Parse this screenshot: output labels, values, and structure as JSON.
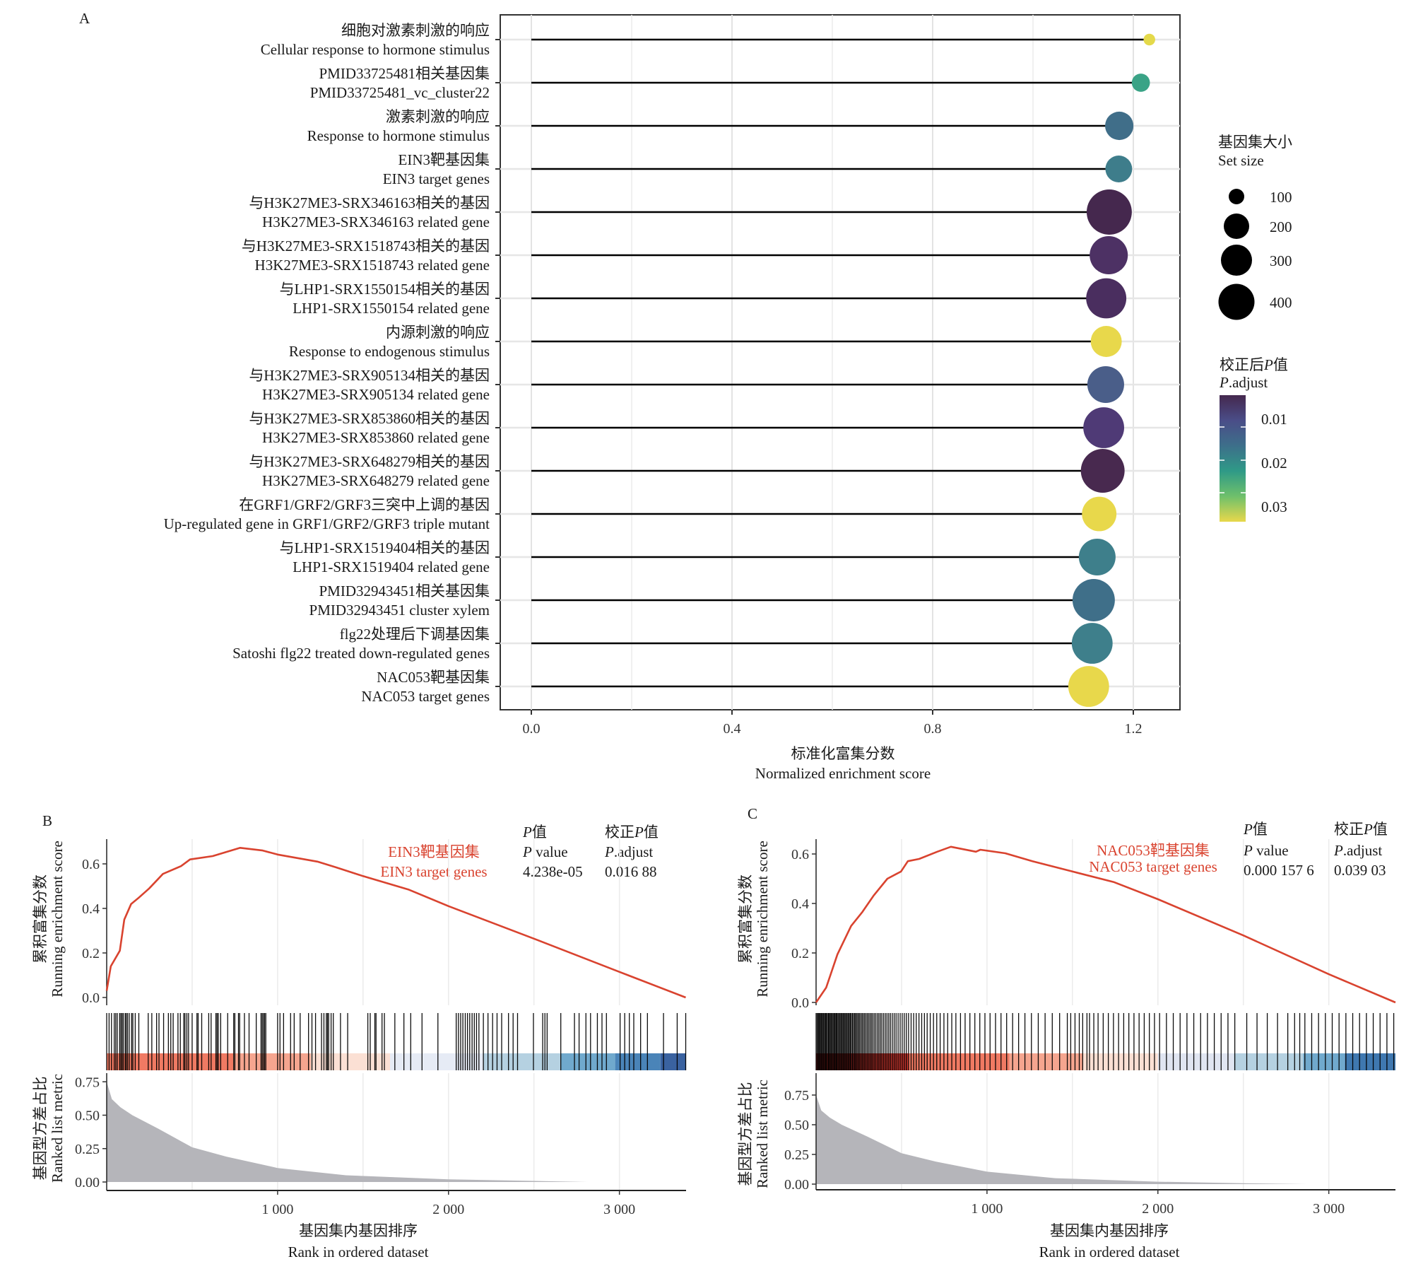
{
  "panel_a": {
    "letter": "A",
    "xlabel_cn": "标准化富集分数",
    "xlabel_en": "Normalized enrichment score",
    "x_ticks": [
      "0.0",
      "0.4",
      "0.8",
      "1.2"
    ],
    "size_legend": {
      "title_cn": "基因集大小",
      "title_en": "Set size",
      "items": [
        "100",
        "200",
        "300",
        "400"
      ]
    },
    "color_legend": {
      "title_cn_prefix": "校正后",
      "title_cn_p": "P",
      "title_cn_suffix": "值",
      "title_en_p": "P",
      "title_en_suffix": ".adjust",
      "ticks": [
        "0.01",
        "0.02",
        "0.03"
      ]
    }
  },
  "panel_b": {
    "letter": "B",
    "gene_set_cn": "EIN3靶基因集",
    "gene_set_en": "EIN3 target genes",
    "pvalue_head_cn_p": "P",
    "pvalue_head_cn": "值",
    "pvalue_head_en_p": "P",
    "pvalue_head_en": " value",
    "padj_head_cn_prefix": "校正",
    "padj_head_cn_p": "P",
    "padj_head_cn": "值",
    "padj_head_en_p": "P",
    "padj_head_en": ".adjust",
    "pvalue": "4.238e-05",
    "padj": "0.016 88",
    "ylabel_top_cn": "累积富集分数",
    "ylabel_top_en": "Running enrichment score",
    "ylabel_bottom_cn": "基因型方差占比",
    "ylabel_bottom_en": "Ranked list metric",
    "xlabel_cn": "基因集内基因排序",
    "xlabel_en": "Rank in ordered dataset",
    "es_ticks": [
      "0.0",
      "0.2",
      "0.4",
      "0.6"
    ],
    "metric_ticks": [
      "0.00",
      "0.25",
      "0.50",
      "0.75"
    ],
    "x_ticks": [
      "1 000",
      "2 000",
      "3 000"
    ]
  },
  "panel_c": {
    "letter": "C",
    "gene_set_cn": "NAC053靶基因集",
    "gene_set_en": "NAC053 target genes",
    "pvalue_head_cn_p": "P",
    "pvalue_head_cn": "值",
    "pvalue_head_en_p": "P",
    "pvalue_head_en": " value",
    "padj_head_cn_prefix": "校正",
    "padj_head_cn_p": "P",
    "padj_head_cn": "值",
    "padj_head_en_p": "P",
    "padj_head_en": ".adjust",
    "pvalue": "0.000 157 6",
    "padj": "0.039 03",
    "ylabel_top_cn": "累积富集分数",
    "ylabel_top_en": "Running enrichment score",
    "ylabel_bottom_cn": "基因型方差占比",
    "ylabel_bottom_en": "Ranked list metric",
    "xlabel_cn": "基因集内基因排序",
    "xlabel_en": "Rank in ordered dataset",
    "es_ticks": [
      "0.0",
      "0.2",
      "0.4",
      "0.6"
    ],
    "metric_ticks": [
      "0.00",
      "0.25",
      "0.50",
      "0.75"
    ],
    "x_ticks": [
      "1 000",
      "2 000",
      "3 000"
    ]
  },
  "chart_data": [
    {
      "type": "scatter",
      "subtype": "lollipop",
      "title": "",
      "xlabel": "标准化富集分数 / Normalized enrichment score",
      "ylabel": "",
      "xlim": [
        -0.06,
        1.29
      ],
      "x_ticks": [
        0.0,
        0.4,
        0.8,
        1.2
      ],
      "grid": true,
      "legend": "right",
      "size_legend": {
        "title": "基因集大小 / Set size",
        "breaks": [
          100,
          200,
          300,
          400
        ]
      },
      "color_legend": {
        "title": "校正后P值 / P.adjust",
        "breaks": [
          0.01,
          0.02,
          0.03
        ],
        "range": [
          0.005,
          0.039
        ],
        "palette": "viridis-reversed"
      },
      "categories": [
        {
          "cn": "细胞对激素刺激的响应",
          "en": "Cellular response to hormone stimulus",
          "nes": 1.232,
          "size": 70,
          "p_adjust": 0.038,
          "color": "#e4d94b"
        },
        {
          "cn": "PMID33725481相关基因集",
          "en": "PMID33725481_vc_cluster22",
          "nes": 1.215,
          "size": 125,
          "p_adjust": 0.026,
          "color": "#3aa386"
        },
        {
          "cn": "激素刺激的响应",
          "en": "Response to hormone stimulus",
          "nes": 1.172,
          "size": 260,
          "p_adjust": 0.017,
          "color": "#406e89"
        },
        {
          "cn": "EIN3靶基因集",
          "en": "EIN3 target genes",
          "nes": 1.171,
          "size": 235,
          "p_adjust": 0.01688,
          "color": "#3e7d8b"
        },
        {
          "cn": "与H3K27ME3-SRX346163相关的基因",
          "en": "H3K27ME3-SRX346163 related gene",
          "nes": 1.152,
          "size": 610,
          "p_adjust": 0.006,
          "color": "#45284e"
        },
        {
          "cn": "与H3K27ME3-SRX1518743相关的基因",
          "en": "H3K27ME3-SRX1518743 related gene",
          "nes": 1.151,
          "size": 445,
          "p_adjust": 0.008,
          "color": "#4d3164"
        },
        {
          "cn": "与LHP1-SRX1550154相关的基因",
          "en": "LHP1-SRX1550154 related gene",
          "nes": 1.146,
          "size": 490,
          "p_adjust": 0.008,
          "color": "#4a2e5f"
        },
        {
          "cn": "内源刺激的响应",
          "en": "Response to endogenous stimulus",
          "nes": 1.146,
          "size": 305,
          "p_adjust": 0.039,
          "color": "#e8d84b"
        },
        {
          "cn": "与H3K27ME3-SRX905134相关的基因",
          "en": "H3K27ME3-SRX905134 related gene",
          "nes": 1.145,
          "size": 415,
          "p_adjust": 0.013,
          "color": "#4a5e89"
        },
        {
          "cn": "与H3K27ME3-SRX853860相关的基因",
          "en": "H3K27ME3-SRX853860 related gene",
          "nes": 1.141,
          "size": 505,
          "p_adjust": 0.009,
          "color": "#4f3a76"
        },
        {
          "cn": "与H3K27ME3-SRX648279相关的基因",
          "en": "H3K27ME3-SRX648279 related gene",
          "nes": 1.139,
          "size": 575,
          "p_adjust": 0.006,
          "color": "#48294f"
        },
        {
          "cn": "在GRF1/GRF2/GRF3三突中上调的基因",
          "en": "Up-regulated gene in GRF1/GRF2/GRF3 triple mutant",
          "nes": 1.132,
          "size": 370,
          "p_adjust": 0.039,
          "color": "#e8d84b"
        },
        {
          "cn": "与LHP1-SRX1519404相关的基因",
          "en": "LHP1-SRX1519404 related gene",
          "nes": 1.128,
          "size": 415,
          "p_adjust": 0.02,
          "color": "#3e7f8b"
        },
        {
          "cn": "PMID32943451相关基因集",
          "en": "PMID32943451 cluster xylem",
          "nes": 1.121,
          "size": 540,
          "p_adjust": 0.017,
          "color": "#3f6f89"
        },
        {
          "cn": "flg22处理后下调基因集",
          "en": "Satoshi flg22 treated down-regulated genes",
          "nes": 1.118,
          "size": 505,
          "p_adjust": 0.02,
          "color": "#3e7f8b"
        },
        {
          "cn": "NAC053靶基因集",
          "en": "NAC053 target genes",
          "nes": 1.111,
          "size": 505,
          "p_adjust": 0.03903,
          "color": "#e8d84b"
        }
      ]
    },
    {
      "type": "line",
      "title": "EIN3靶基因集 / EIN3 target genes",
      "xlabel": "基因集内基因排序 / Rank in ordered dataset",
      "ylabel": "累积富集分数 / Running enrichment score",
      "xlim": [
        0,
        3390
      ],
      "ylim": [
        -0.02,
        0.7
      ],
      "grid": true,
      "line_color": "#d9432f",
      "running_es": [
        [
          0,
          0.03
        ],
        [
          24,
          0.14
        ],
        [
          77,
          0.21
        ],
        [
          103,
          0.35
        ],
        [
          143,
          0.42
        ],
        [
          183,
          0.445
        ],
        [
          249,
          0.49
        ],
        [
          329,
          0.555
        ],
        [
          435,
          0.59
        ],
        [
          488,
          0.62
        ],
        [
          620,
          0.635
        ],
        [
          781,
          0.672
        ],
        [
          913,
          0.66
        ],
        [
          1000,
          0.642
        ],
        [
          1233,
          0.61
        ],
        [
          1340,
          0.585
        ],
        [
          1500,
          0.545
        ],
        [
          1765,
          0.485
        ],
        [
          2000,
          0.41
        ],
        [
          2500,
          0.264
        ],
        [
          3000,
          0.115
        ],
        [
          3388,
          0.0
        ]
      ],
      "hits": [
        0,
        14,
        28,
        44,
        53,
        62,
        76,
        83,
        90,
        97,
        108,
        114,
        122,
        132,
        146,
        153,
        167,
        188,
        243,
        264,
        292,
        306,
        333,
        361,
        375,
        389,
        417,
        431,
        451,
        458,
        469,
        479,
        500,
        528,
        535,
        556,
        597,
        611,
        639,
        646,
        653,
        667,
        708,
        743,
        750,
        771,
        778,
        806,
        833,
        875,
        903,
        910,
        917,
        924,
        931,
        1000,
        1014,
        1035,
        1076,
        1097,
        1132,
        1181,
        1201,
        1222,
        1257,
        1271,
        1285,
        1292,
        1299,
        1313,
        1326,
        1368,
        1410,
        1528,
        1542,
        1569,
        1576,
        1611,
        1625,
        1686,
        1739,
        1779,
        1845,
        1938,
        2045,
        2058,
        2071,
        2084,
        2098,
        2111,
        2124,
        2138,
        2151,
        2164,
        2178,
        2204,
        2231,
        2258,
        2284,
        2311,
        2351,
        2378,
        2404,
        2497,
        2551,
        2564,
        2577,
        2657,
        2737,
        2764,
        2804,
        2831,
        2871,
        2898,
        2924,
        3004,
        3031,
        3058,
        3084,
        3124,
        3164,
        3258,
        3338,
        3388
      ],
      "rank_color_bands": [
        [
          0,
          741,
          "#f07a63"
        ],
        [
          741,
          1194,
          "#f5a58f"
        ],
        [
          1194,
          1658,
          "#fbe0d4"
        ],
        [
          1658,
          2203,
          "#e6ebf5"
        ],
        [
          2203,
          2657,
          "#b5d1e1"
        ],
        [
          2657,
          2975,
          "#70a9cd"
        ],
        [
          2975,
          3240,
          "#4a84b8"
        ],
        [
          3240,
          3390,
          "#3a62a0"
        ]
      ],
      "metric_ylim": [
        -0.06,
        0.9
      ],
      "ranked_metric": [
        [
          0,
          0.75
        ],
        [
          30,
          0.62
        ],
        [
          80,
          0.56
        ],
        [
          150,
          0.5
        ],
        [
          300,
          0.4
        ],
        [
          500,
          0.26
        ],
        [
          700,
          0.19
        ],
        [
          1000,
          0.105
        ],
        [
          1400,
          0.05
        ],
        [
          2000,
          0.02
        ],
        [
          2500,
          0.008
        ],
        [
          2815,
          0.0
        ]
      ],
      "x_ticks": [
        1000,
        2000,
        3000
      ],
      "annotations": {
        "p_value": "4.238e-05",
        "p_adjust": "0.016 88"
      }
    },
    {
      "type": "line",
      "title": "NAC053靶基因集 / NAC053 target genes",
      "xlabel": "基因集内基因排序 / Rank in ordered dataset",
      "ylabel": "累积富集分数 / Running enrichment score",
      "xlim": [
        0,
        3390
      ],
      "ylim": [
        -0.02,
        0.66
      ],
      "grid": true,
      "line_color": "#d9432f",
      "running_es": [
        [
          0,
          0.0
        ],
        [
          59,
          0.06
        ],
        [
          125,
          0.194
        ],
        [
          205,
          0.309
        ],
        [
          271,
          0.366
        ],
        [
          337,
          0.432
        ],
        [
          417,
          0.5
        ],
        [
          497,
          0.529
        ],
        [
          537,
          0.571
        ],
        [
          603,
          0.58
        ],
        [
          709,
          0.609
        ],
        [
          789,
          0.629
        ],
        [
          935,
          0.609
        ],
        [
          961,
          0.617
        ],
        [
          1107,
          0.603
        ],
        [
          1266,
          0.571
        ],
        [
          1500,
          0.529
        ],
        [
          1744,
          0.486
        ],
        [
          2000,
          0.417
        ],
        [
          2500,
          0.271
        ],
        [
          3000,
          0.114
        ],
        [
          3390,
          0.0
        ]
      ],
      "hits": [
        0,
        6,
        12,
        17,
        22,
        28,
        33,
        38,
        44,
        50,
        55,
        60,
        66,
        72,
        77,
        83,
        88,
        94,
        100,
        106,
        111,
        117,
        122,
        128,
        134,
        140,
        146,
        152,
        158,
        164,
        170,
        176,
        182,
        188,
        194,
        200,
        206,
        213,
        219,
        226,
        232,
        239,
        246,
        253,
        260,
        268,
        275,
        283,
        291,
        299,
        307,
        315,
        323,
        331,
        340,
        349,
        358,
        367,
        376,
        385,
        395,
        405,
        415,
        425,
        435,
        446,
        457,
        468,
        480,
        492,
        504,
        516,
        528,
        541,
        556,
        571,
        586,
        602,
        618,
        634,
        650,
        668,
        687,
        706,
        726,
        748,
        770,
        794,
        818,
        845,
        872,
        900,
        929,
        958,
        988,
        1018,
        1050,
        1082,
        1115,
        1150,
        1185,
        1222,
        1260,
        1300,
        1340,
        1382,
        1425,
        1470,
        1490,
        1515,
        1540,
        1560,
        1585,
        1600,
        1625,
        1650,
        1680,
        1710,
        1740,
        1770,
        1800,
        1830,
        1860,
        1890,
        1920,
        1950,
        1980,
        2010,
        2050,
        2090,
        2130,
        2170,
        2210,
        2250,
        2290,
        2330,
        2370,
        2410,
        2450,
        2520,
        2580,
        2640,
        2700,
        2760,
        2800,
        2830,
        2860,
        2900,
        2940,
        2980,
        3020,
        3060,
        3100,
        3140,
        3180,
        3220,
        3260,
        3300,
        3340,
        3380
      ],
      "rank_color_bands": [
        [
          0,
          541,
          "#c8362e"
        ],
        [
          541,
          1132,
          "#f07a63"
        ],
        [
          1132,
          1562,
          "#f5a58f"
        ],
        [
          1562,
          2000,
          "#fbe0d4"
        ],
        [
          2000,
          2445,
          "#e0e5f1"
        ],
        [
          2445,
          2850,
          "#b5d1e1"
        ],
        [
          2850,
          3094,
          "#70a9cd"
        ],
        [
          3094,
          3390,
          "#3f78b0"
        ]
      ],
      "metric_ylim": [
        -0.06,
        0.9
      ],
      "ranked_metric": [
        [
          0,
          0.75
        ],
        [
          30,
          0.62
        ],
        [
          80,
          0.56
        ],
        [
          150,
          0.5
        ],
        [
          300,
          0.4
        ],
        [
          500,
          0.26
        ],
        [
          700,
          0.19
        ],
        [
          1000,
          0.105
        ],
        [
          1400,
          0.05
        ],
        [
          2000,
          0.02
        ],
        [
          2500,
          0.008
        ],
        [
          2870,
          0.0
        ]
      ],
      "x_ticks": [
        1000,
        2000,
        3000
      ],
      "annotations": {
        "p_value": "0.000 157 6",
        "p_adjust": "0.039 03"
      }
    }
  ]
}
